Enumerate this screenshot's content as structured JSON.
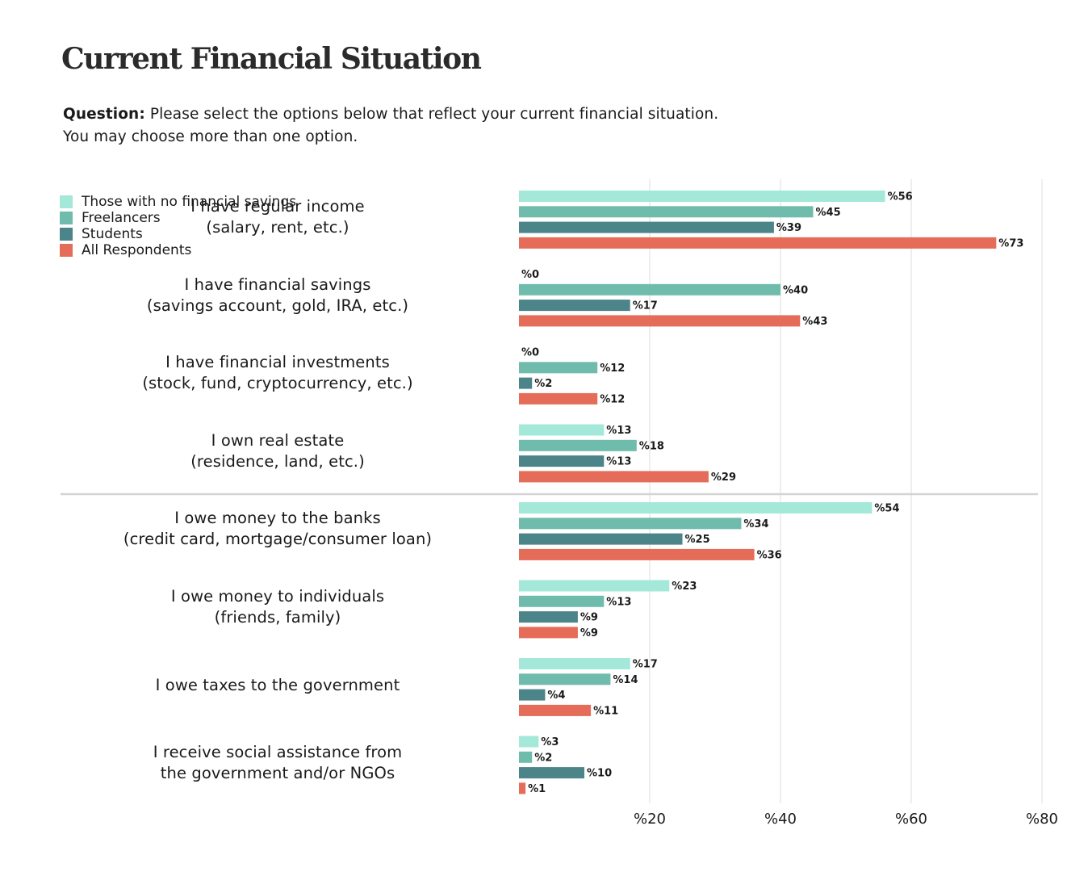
{
  "title": "Current Financial Situation",
  "question": {
    "prefix": "Question:",
    "line1": "Please select the options below that reflect your current financial situation.",
    "line2": "You may choose more than one option."
  },
  "chart_data": {
    "type": "bar",
    "orientation": "horizontal",
    "title": "Current Financial Situation",
    "xlim": [
      0,
      80
    ],
    "xticks": [
      {
        "value": 20,
        "label": "%20"
      },
      {
        "value": 40,
        "label": "%40"
      },
      {
        "value": 60,
        "label": "%60"
      },
      {
        "value": 80,
        "label": "%80"
      }
    ],
    "grid": true,
    "value_prefix": "%",
    "categories": [
      {
        "line1": "I have regular income",
        "line2": "(salary, rent, etc.)"
      },
      {
        "line1": "I have financial savings",
        "line2": "(savings account, gold, IRA, etc.)"
      },
      {
        "line1": "I have financial investments",
        "line2": "(stock, fund, cryptocurrency, etc.)"
      },
      {
        "line1": "I own real estate",
        "line2": "(residence, land, etc.)"
      },
      {
        "line1": "I owe money to the banks",
        "line2": "(credit card, mortgage/consumer loan)"
      },
      {
        "line1": "I owe money to individuals",
        "line2": "(friends, family)"
      },
      {
        "line1": "I owe taxes to the government",
        "line2": ""
      },
      {
        "line1": "I receive social assistance from",
        "line2": "the government and/or NGOs"
      }
    ],
    "series": [
      {
        "name": "Those with no financial savings",
        "color": "#a3e8d8",
        "values": [
          56,
          0,
          0,
          13,
          54,
          23,
          17,
          3
        ]
      },
      {
        "name": "Freelancers",
        "color": "#6fbcad",
        "values": [
          45,
          40,
          12,
          18,
          34,
          13,
          14,
          2
        ]
      },
      {
        "name": "Students",
        "color": "#4b8489",
        "values": [
          39,
          17,
          2,
          13,
          25,
          9,
          4,
          10
        ]
      },
      {
        "name": "All Respondents",
        "color": "#e56c58",
        "values": [
          73,
          43,
          12,
          29,
          36,
          9,
          11,
          1
        ]
      }
    ],
    "separator_after_category": 3
  }
}
